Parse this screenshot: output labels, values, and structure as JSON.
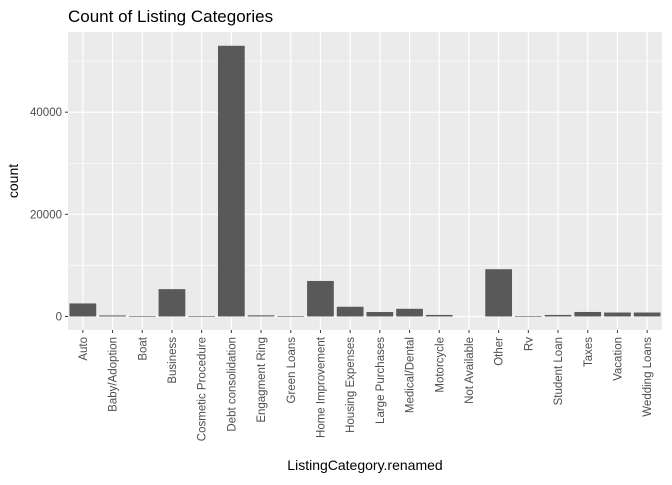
{
  "chart_data": {
    "type": "bar",
    "title": "Count of Listing Categories",
    "xlabel": "ListingCategory.renamed",
    "ylabel": "count",
    "ylim": [
      -2650,
      55700
    ],
    "yticks": [
      0,
      20000,
      40000
    ],
    "grid": true,
    "colors": {
      "bar": "#595959",
      "panel": "#ebebeb",
      "grid_major": "#ffffff",
      "text": "#000000",
      "tick_text": "#4d4d4d",
      "tick_mark": "#333333"
    },
    "categories": [
      "Auto",
      "Baby/Adoption",
      "Boat",
      "Business",
      "Cosmetic Procedure",
      "Debt consolidation",
      "Engagment Ring",
      "Green Loans",
      "Home Improvement",
      "Housing Expenses",
      "Large Purchases",
      "Medical/Dental",
      "Motorcycle",
      "Not Available",
      "Other",
      "Rv",
      "Student Loan",
      "Taxes",
      "Vacation",
      "Wedding Loans"
    ],
    "values": [
      2550,
      200,
      85,
      5350,
      90,
      53000,
      220,
      60,
      6950,
      1900,
      870,
      1500,
      300,
      0,
      9250,
      50,
      300,
      880,
      770,
      770
    ]
  }
}
